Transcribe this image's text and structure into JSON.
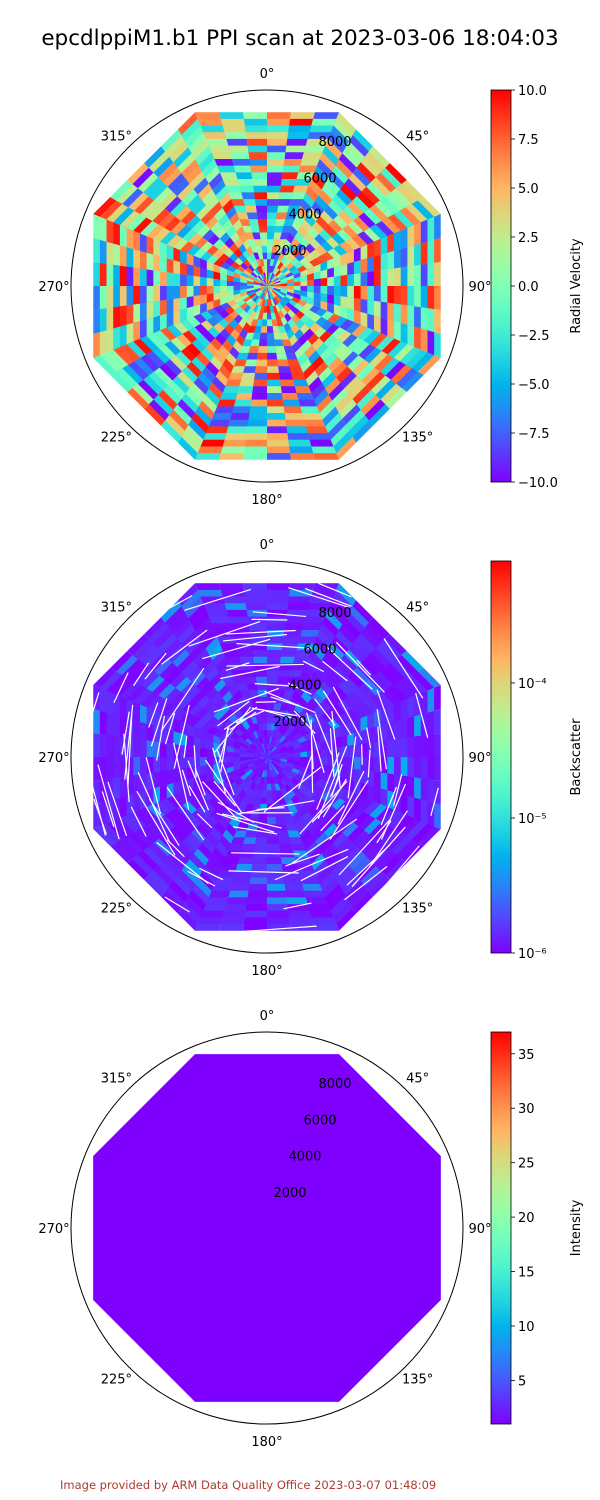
{
  "figure": {
    "title": "epcdlppiM1.b1 PPI scan at 2023-03-06 18:04:03",
    "footer": "Image provided by ARM Data Quality Office 2023-03-07 01:48:09"
  },
  "chart_data": [
    {
      "type": "heatmap",
      "projection": "polar",
      "theta_zero": "north",
      "theta_direction": "clockwise",
      "theta_ticks": [
        "0°",
        "45°",
        "90°",
        "135°",
        "180°",
        "225°",
        "270°",
        "315°"
      ],
      "r_ticks": [
        2000,
        4000,
        6000,
        8000
      ],
      "r_max": 10000,
      "scan_shape": "octagon",
      "field": "Radial Velocity",
      "colorbar": {
        "label": "Radial Velocity",
        "scale": "linear",
        "range": [
          -10.0,
          10.0
        ],
        "ticks": [
          "10.0",
          "7.5",
          "5.0",
          "2.5",
          "0.0",
          "−2.5",
          "−5.0",
          "−7.5",
          "−10.0"
        ],
        "colormap": "rainbow"
      },
      "pattern": "noisy"
    },
    {
      "type": "heatmap",
      "projection": "polar",
      "theta_zero": "north",
      "theta_direction": "clockwise",
      "theta_ticks": [
        "0°",
        "45°",
        "90°",
        "135°",
        "180°",
        "225°",
        "270°",
        "315°"
      ],
      "r_ticks": [
        2000,
        4000,
        6000,
        8000
      ],
      "r_max": 10000,
      "scan_shape": "octagon",
      "field": "Backscatter",
      "colorbar": {
        "label": "Backscatter",
        "scale": "log",
        "range": [
          1e-06,
          0.0008
        ],
        "ticks": [
          "10⁻⁴",
          "10⁻⁵",
          "10⁻⁶"
        ],
        "colormap": "rainbow"
      },
      "pattern": "low"
    },
    {
      "type": "heatmap",
      "projection": "polar",
      "theta_zero": "north",
      "theta_direction": "clockwise",
      "theta_ticks": [
        "0°",
        "45°",
        "90°",
        "135°",
        "180°",
        "225°",
        "270°",
        "315°"
      ],
      "r_ticks": [
        2000,
        4000,
        6000,
        8000
      ],
      "r_max": 10000,
      "scan_shape": "octagon",
      "field": "Intensity",
      "colorbar": {
        "label": "Intensity",
        "scale": "linear",
        "range": [
          1,
          37
        ],
        "ticks": [
          "35",
          "30",
          "25",
          "20",
          "15",
          "10",
          "5"
        ],
        "colormap": "rainbow"
      },
      "pattern": "uniform"
    }
  ]
}
